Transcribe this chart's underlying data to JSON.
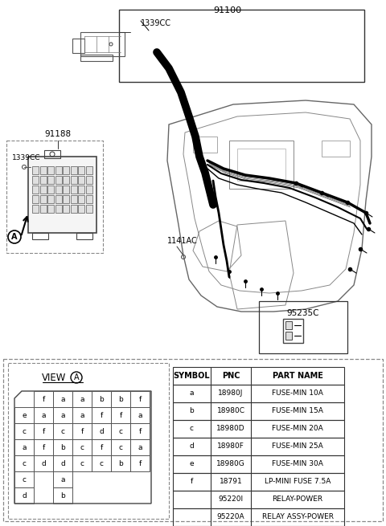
{
  "bg_color": "#ffffff",
  "label_91100": "91100",
  "label_1339CC_top": "1339CC",
  "label_91188": "91188",
  "label_1339CC_left": "1339CC",
  "label_1141AC": "1141AC",
  "label_95235C": "95235C",
  "circle_A": "A",
  "view_label": "VIEW",
  "table_headers": [
    "SYMBOL",
    "PNC",
    "PART NAME"
  ],
  "table_rows": [
    [
      "a",
      "18980J",
      "FUSE-MIN 10A"
    ],
    [
      "b",
      "18980C",
      "FUSE-MIN 15A"
    ],
    [
      "c",
      "18980D",
      "FUSE-MIN 20A"
    ],
    [
      "d",
      "18980F",
      "FUSE-MIN 25A"
    ],
    [
      "e",
      "18980G",
      "FUSE-MIN 30A"
    ],
    [
      "f",
      "18791",
      "LP-MINI FUSE 7.5A"
    ],
    [
      "",
      "95220I",
      "RELAY-POWER"
    ],
    [
      "",
      "95220A",
      "RELAY ASSY-POWER"
    ]
  ],
  "fuse_grid": [
    [
      "",
      "f",
      "a",
      "a",
      "b",
      "b",
      "f"
    ],
    [
      "e",
      "a",
      "a",
      "a",
      "f",
      "f",
      "a"
    ],
    [
      "c",
      "f",
      "c",
      "f",
      "d",
      "c",
      "f"
    ],
    [
      "a",
      "f",
      "b",
      "c",
      "f",
      "c",
      "a"
    ],
    [
      "c",
      "d",
      "d",
      "c",
      "c",
      "b",
      "f"
    ],
    [
      "c",
      "",
      "a",
      "",
      "",
      "",
      ""
    ],
    [
      "d",
      "",
      "b",
      "",
      "",
      "",
      ""
    ]
  ]
}
